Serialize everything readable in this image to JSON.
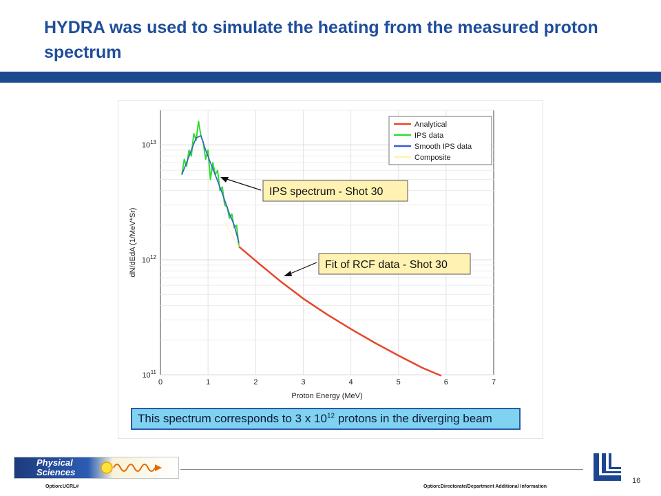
{
  "slide": {
    "title": "HYDRA was used to simulate the heating from the measured proton spectrum",
    "caption_prefix": "This spectrum corresponds to 3 x 10",
    "caption_exp": "12",
    "caption_suffix": " protons in the diverging beam",
    "footer_left": "Option:UCRL#",
    "footer_right": "Option:Directorate/Department  Additional Information",
    "page_number": "16",
    "logo_line1": "Physical",
    "logo_line2": "Sciences"
  },
  "colors": {
    "title": "#1f4e9b",
    "bar": "#1c4a8e",
    "analytical": "#e8452a",
    "ips": "#2fdc2f",
    "smooth": "#3a5bd0",
    "composite": "#fff2b3"
  },
  "chart_data": {
    "type": "line",
    "xlabel": "Proton Energy (MeV)",
    "ylabel": "dN/dEdA (1/MeV*Sr)",
    "xlim": [
      0,
      7
    ],
    "xticks": [
      "0",
      "1",
      "2",
      "3",
      "4",
      "5",
      "6",
      "7"
    ],
    "ylim": [
      100000000000.0,
      20000000000000.0
    ],
    "yscale": "log",
    "yticks": [
      {
        "base": "10",
        "exp": "11"
      },
      {
        "base": "10",
        "exp": "12"
      },
      {
        "base": "10",
        "exp": "13"
      }
    ],
    "grid": true,
    "legend_position": "top-right",
    "legend": [
      "Analytical",
      "IPS data",
      "Smooth IPS data",
      "Composite"
    ],
    "annotations": [
      "IPS spectrum - Shot 30",
      "Fit of RCF data - Shot 30"
    ],
    "series": [
      {
        "name": "Analytical",
        "x": [
          1.65,
          2.0,
          2.5,
          3.0,
          3.5,
          4.0,
          4.5,
          5.0,
          5.5,
          5.9
        ],
        "y": [
          1300000000000.0,
          980000000000.0,
          660000000000.0,
          460000000000.0,
          335000000000.0,
          250000000000.0,
          190000000000.0,
          147000000000.0,
          115000000000.0,
          98000000000.0
        ]
      },
      {
        "name": "IPS data",
        "x": [
          0.45,
          0.5,
          0.55,
          0.6,
          0.65,
          0.7,
          0.75,
          0.8,
          0.85,
          0.9,
          0.95,
          1.0,
          1.05,
          1.1,
          1.15,
          1.2,
          1.25,
          1.3,
          1.35,
          1.4,
          1.45,
          1.5,
          1.55,
          1.6,
          1.65
        ],
        "y": [
          5500000000000.0,
          7500000000000.0,
          6500000000000.0,
          9000000000000.0,
          8000000000000.0,
          12500000000000.0,
          11000000000000.0,
          16000000000000.0,
          12000000000000.0,
          10500000000000.0,
          7500000000000.0,
          9000000000000.0,
          5000000000000.0,
          7000000000000.0,
          5500000000000.0,
          6000000000000.0,
          4000000000000.0,
          4300000000000.0,
          3000000000000.0,
          2900000000000.0,
          2300000000000.0,
          2500000000000.0,
          1900000000000.0,
          2000000000000.0,
          1300000000000.0
        ]
      },
      {
        "name": "Smooth IPS data",
        "x": [
          0.45,
          0.55,
          0.65,
          0.75,
          0.85,
          0.95,
          1.05,
          1.15,
          1.25,
          1.35,
          1.45,
          1.55,
          1.65
        ],
        "y": [
          5500000000000.0,
          7000000000000.0,
          9000000000000.0,
          11500000000000.0,
          12000000000000.0,
          9000000000000.0,
          7000000000000.0,
          5500000000000.0,
          4300000000000.0,
          3300000000000.0,
          2500000000000.0,
          2000000000000.0,
          1400000000000.0
        ]
      },
      {
        "name": "Composite",
        "x": [
          1.35,
          1.5,
          1.65
        ],
        "y": [
          2100000000000.0,
          1650000000000.0,
          1300000000000.0
        ]
      }
    ]
  }
}
